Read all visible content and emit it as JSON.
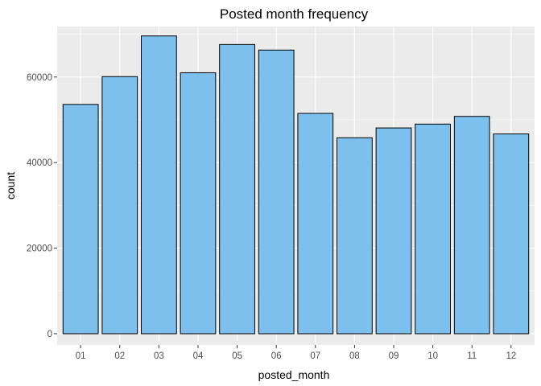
{
  "chart_data": {
    "type": "bar",
    "title": "Posted month frequency",
    "xlabel": "posted_month",
    "ylabel": "count",
    "categories": [
      "01",
      "02",
      "03",
      "04",
      "05",
      "06",
      "07",
      "08",
      "09",
      "10",
      "11",
      "12"
    ],
    "values": [
      53600,
      60100,
      69600,
      61000,
      67600,
      66300,
      51500,
      45800,
      48100,
      49000,
      50800,
      46700
    ],
    "ylim": [
      0,
      72000
    ],
    "yticks": [
      0,
      20000,
      40000,
      60000
    ],
    "ytick_labels": [
      "0",
      "20000",
      "40000",
      "60000"
    ],
    "grid": true,
    "colors": {
      "bar_fill": "#7DC0EE",
      "bar_stroke": "#000000",
      "panel_background": "#EBEBEB",
      "grid_major": "#FFFFFF"
    }
  }
}
